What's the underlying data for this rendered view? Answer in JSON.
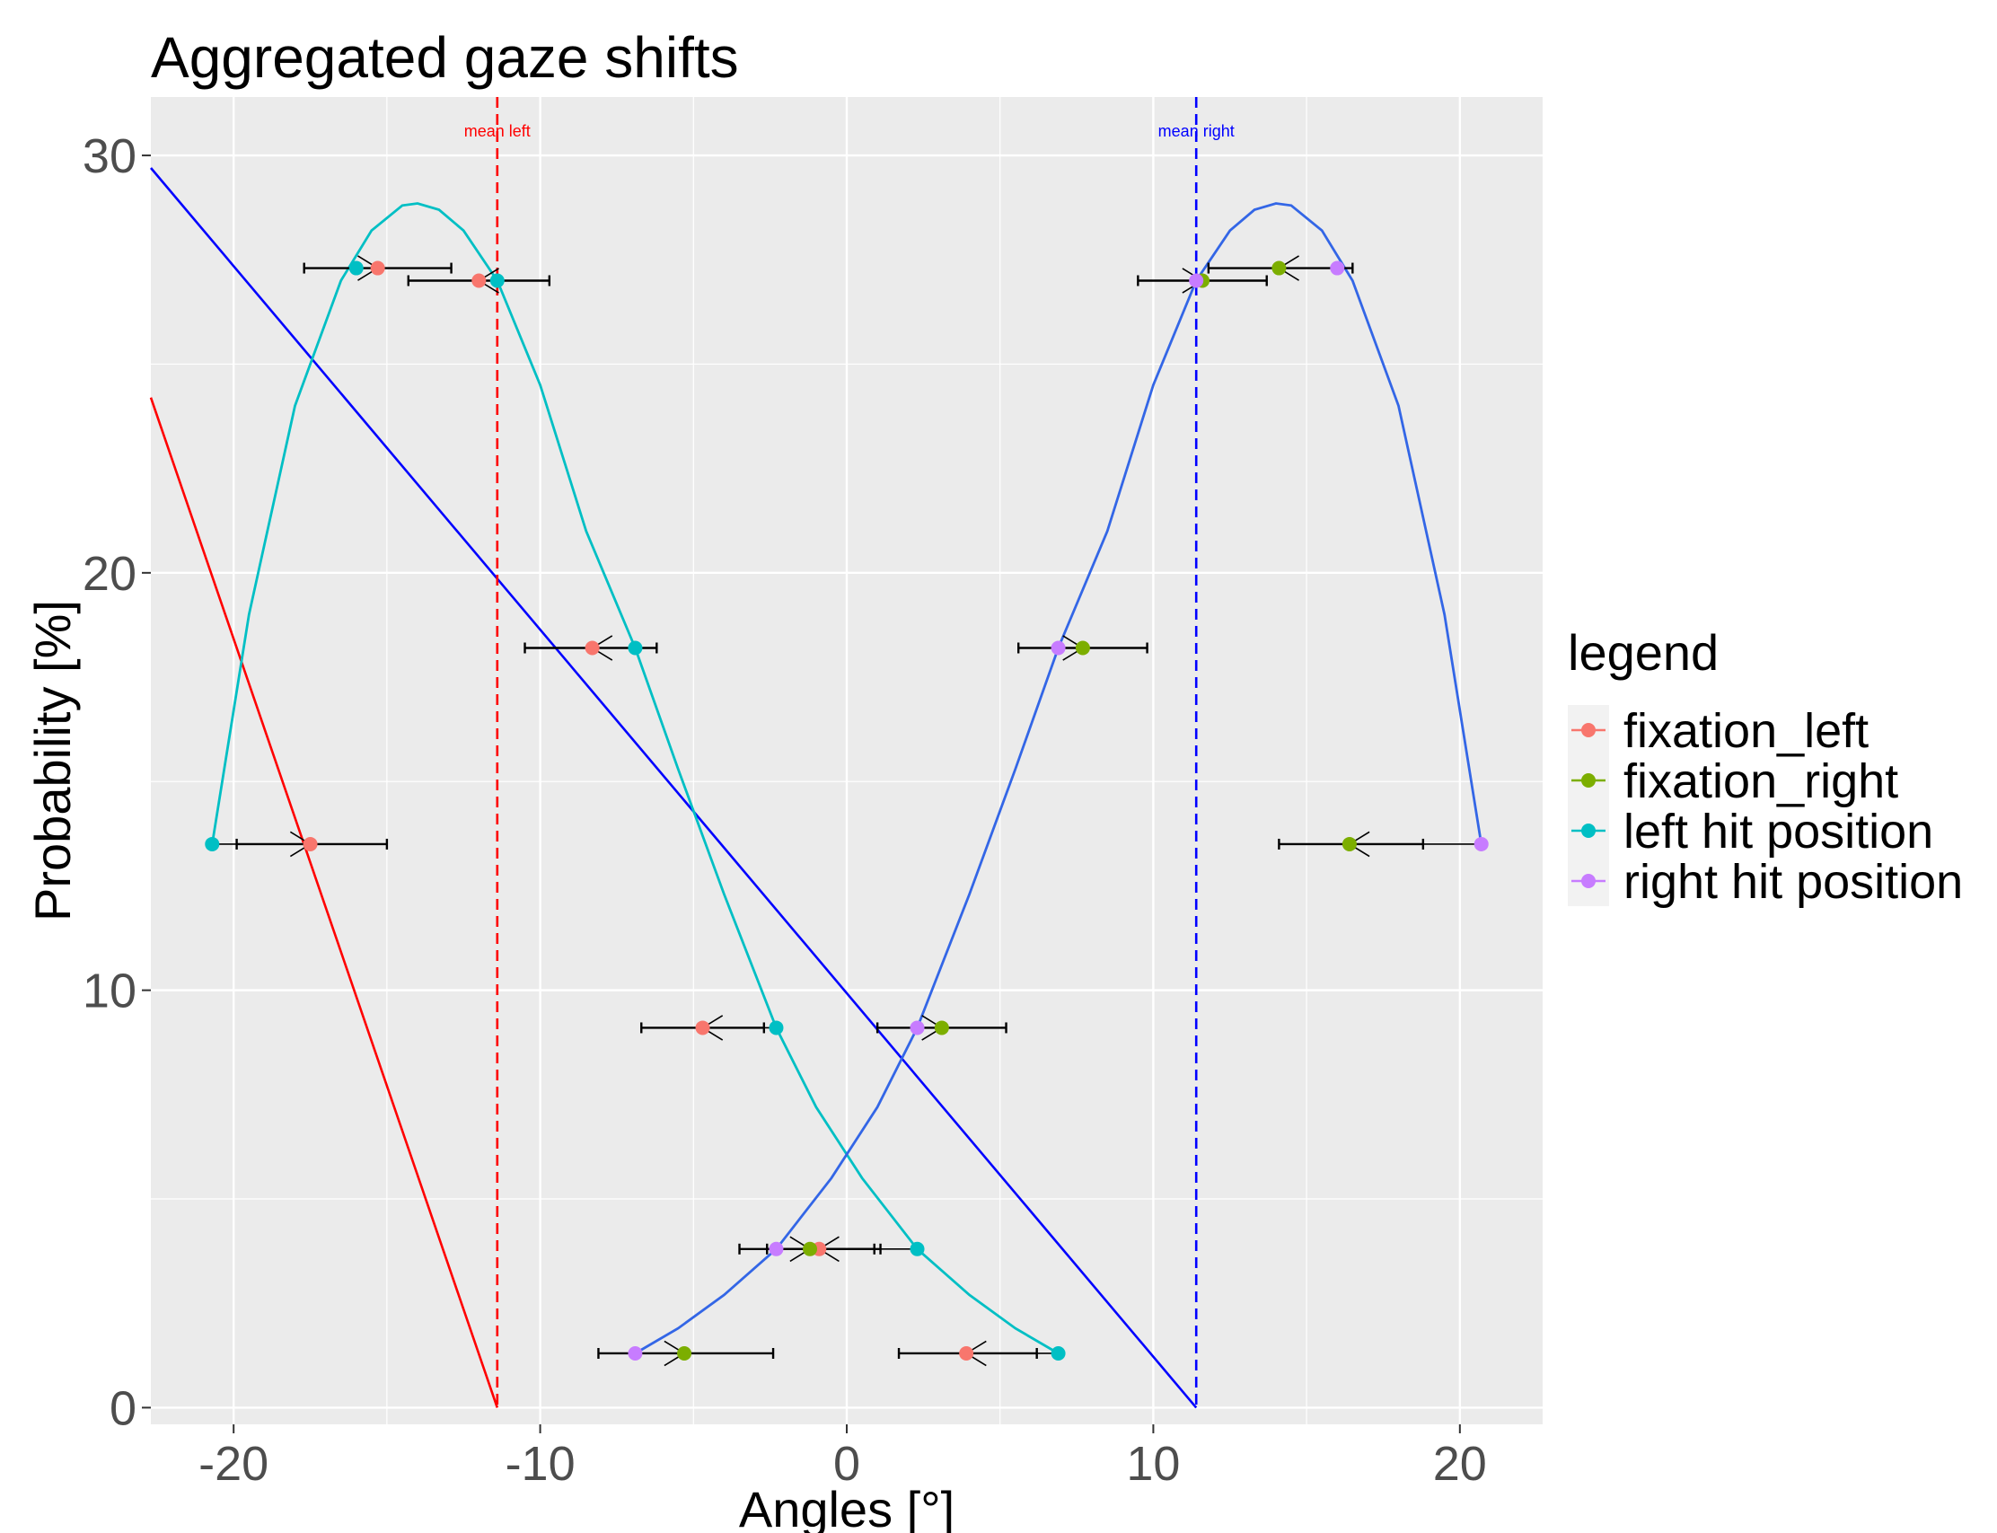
{
  "chart_data": {
    "type": "scatter",
    "title": "Aggregated gaze shifts",
    "xlabel": "Angles [°]",
    "ylabel": "Probability [%]",
    "xlim": [
      -22.7,
      22.7
    ],
    "ylim": [
      -0.4,
      31.4
    ],
    "x_ticks": [
      -20,
      -10,
      0,
      10,
      20
    ],
    "x_tick_labels": [
      "-20",
      "-10",
      "0",
      "10",
      "20"
    ],
    "y_ticks": [
      0,
      10,
      20,
      30
    ],
    "y_tick_labels": [
      "0",
      "10",
      "20",
      "30"
    ],
    "grid": true,
    "legend": {
      "title": "legend",
      "position": "right",
      "entries": [
        {
          "label": "fixation_left",
          "color": "#F8766D"
        },
        {
          "label": "fixation_right",
          "color": "#7CAE00"
        },
        {
          "label": "left hit position",
          "color": "#00BFC4"
        },
        {
          "label": "right hit position",
          "color": "#C77CFF"
        }
      ]
    },
    "series": [
      {
        "name": "fixation_left",
        "color": "#F8766D",
        "points": [
          [
            -17.5,
            13.5
          ],
          [
            -15.3,
            27.3
          ],
          [
            -12.0,
            27.0
          ],
          [
            -8.3,
            18.2
          ],
          [
            -4.7,
            9.1
          ],
          [
            -0.9,
            3.8
          ],
          [
            3.9,
            1.3
          ]
        ]
      },
      {
        "name": "fixation_right",
        "color": "#7CAE00",
        "points": [
          [
            -5.3,
            1.3
          ],
          [
            -1.2,
            3.8
          ],
          [
            3.1,
            9.1
          ],
          [
            7.7,
            18.2
          ],
          [
            11.6,
            27.0
          ],
          [
            14.1,
            27.3
          ],
          [
            16.4,
            13.5
          ]
        ]
      },
      {
        "name": "left hit position",
        "color": "#00BFC4",
        "points": [
          [
            -20.7,
            13.5
          ],
          [
            -16.0,
            27.3
          ],
          [
            -11.4,
            27.0
          ],
          [
            -6.9,
            18.2
          ],
          [
            -2.3,
            9.1
          ],
          [
            2.3,
            3.8
          ],
          [
            6.9,
            1.3
          ]
        ]
      },
      {
        "name": "right hit position",
        "color": "#C77CFF",
        "points": [
          [
            -6.9,
            1.3
          ],
          [
            -2.3,
            3.8
          ],
          [
            2.3,
            9.1
          ],
          [
            6.9,
            18.2
          ],
          [
            11.4,
            27.0
          ],
          [
            16.0,
            27.3
          ],
          [
            20.7,
            13.5
          ]
        ]
      }
    ],
    "error_bars": [
      {
        "y": 13.5,
        "xmin": -19.9,
        "xmax": -15.0
      },
      {
        "y": 27.3,
        "xmin": -17.7,
        "xmax": -12.9
      },
      {
        "y": 27.0,
        "xmin": -14.3,
        "xmax": -9.7
      },
      {
        "y": 18.2,
        "xmin": -10.5,
        "xmax": -6.2
      },
      {
        "y": 9.1,
        "xmin": -6.7,
        "xmax": -2.7
      },
      {
        "y": 3.8,
        "xmin": -3.5,
        "xmax": 1.1
      },
      {
        "y": 1.3,
        "xmin": -8.1,
        "xmax": -2.4
      },
      {
        "y": 3.8,
        "xmin": -2.6,
        "xmax": 0.9
      },
      {
        "y": 9.1,
        "xmin": 1.0,
        "xmax": 5.2
      },
      {
        "y": 18.2,
        "xmin": 5.6,
        "xmax": 9.8
      },
      {
        "y": 27.0,
        "xmin": 9.5,
        "xmax": 13.7
      },
      {
        "y": 27.3,
        "xmin": 11.8,
        "xmax": 16.5
      },
      {
        "y": 13.5,
        "xmin": 14.1,
        "xmax": 18.8
      },
      {
        "y": 1.3,
        "xmin": 1.7,
        "xmax": 6.2
      }
    ],
    "arrows": [
      {
        "from": [
          -16.0,
          27.3
        ],
        "to": [
          -15.3,
          27.3
        ]
      },
      {
        "from": [
          -11.4,
          27.0
        ],
        "to": [
          -12.0,
          27.0
        ]
      },
      {
        "from": [
          -20.7,
          13.5
        ],
        "to": [
          -17.5,
          13.5
        ]
      },
      {
        "from": [
          -6.9,
          18.2
        ],
        "to": [
          -8.3,
          18.2
        ]
      },
      {
        "from": [
          -2.3,
          9.1
        ],
        "to": [
          -4.7,
          9.1
        ]
      },
      {
        "from": [
          2.3,
          3.8
        ],
        "to": [
          -0.9,
          3.8
        ]
      },
      {
        "from": [
          6.9,
          1.3
        ],
        "to": [
          3.9,
          1.3
        ]
      },
      {
        "from": [
          11.4,
          27.0
        ],
        "to": [
          11.6,
          27.0
        ]
      },
      {
        "from": [
          16.0,
          27.3
        ],
        "to": [
          14.1,
          27.3
        ]
      },
      {
        "from": [
          20.7,
          13.5
        ],
        "to": [
          16.4,
          13.5
        ]
      },
      {
        "from": [
          6.9,
          18.2
        ],
        "to": [
          7.7,
          18.2
        ]
      },
      {
        "from": [
          2.3,
          9.1
        ],
        "to": [
          3.1,
          9.1
        ]
      },
      {
        "from": [
          -2.3,
          3.8
        ],
        "to": [
          -1.2,
          3.8
        ]
      },
      {
        "from": [
          -6.9,
          1.3
        ],
        "to": [
          -5.3,
          1.3
        ]
      }
    ],
    "curves": [
      {
        "color": "#00BFC4",
        "points": [
          [
            -20.7,
            13.5
          ],
          [
            -19.5,
            19.0
          ],
          [
            -18.0,
            24.0
          ],
          [
            -16.5,
            27.0
          ],
          [
            -15.5,
            28.2
          ],
          [
            -14.5,
            28.8
          ],
          [
            -14.0,
            28.85
          ],
          [
            -13.3,
            28.7
          ],
          [
            -12.5,
            28.2
          ],
          [
            -11.4,
            27.0
          ],
          [
            -10.0,
            24.5
          ],
          [
            -8.5,
            21.0
          ],
          [
            -6.9,
            18.2
          ],
          [
            -5.5,
            15.3
          ],
          [
            -4.0,
            12.3
          ],
          [
            -2.3,
            9.1
          ],
          [
            -1.0,
            7.2
          ],
          [
            0.5,
            5.5
          ],
          [
            2.3,
            3.8
          ],
          [
            4.0,
            2.7
          ],
          [
            5.5,
            1.9
          ],
          [
            6.9,
            1.3
          ]
        ]
      },
      {
        "color": "#3366E6",
        "points": [
          [
            -6.9,
            1.3
          ],
          [
            -5.5,
            1.9
          ],
          [
            -4.0,
            2.7
          ],
          [
            -2.3,
            3.8
          ],
          [
            -0.5,
            5.5
          ],
          [
            1.0,
            7.2
          ],
          [
            2.3,
            9.1
          ],
          [
            4.0,
            12.3
          ],
          [
            5.5,
            15.3
          ],
          [
            6.9,
            18.2
          ],
          [
            8.5,
            21.0
          ],
          [
            10.0,
            24.5
          ],
          [
            11.4,
            27.0
          ],
          [
            12.5,
            28.2
          ],
          [
            13.3,
            28.7
          ],
          [
            14.0,
            28.85
          ],
          [
            14.5,
            28.8
          ],
          [
            15.5,
            28.2
          ],
          [
            16.5,
            27.0
          ],
          [
            18.0,
            24.0
          ],
          [
            19.5,
            19.0
          ],
          [
            20.7,
            13.5
          ]
        ]
      }
    ],
    "ref_lines": [
      {
        "color": "#FF0000",
        "from": [
          -22.7,
          24.2
        ],
        "to": [
          -11.4,
          0
        ]
      },
      {
        "color": "#0000FF",
        "from": [
          -22.7,
          29.7
        ],
        "to": [
          11.4,
          0
        ]
      }
    ],
    "vlines": [
      {
        "x": -11.4,
        "color": "#FF0000",
        "label": "mean left"
      },
      {
        "x": 11.4,
        "color": "#0000FF",
        "label": "mean right"
      }
    ]
  }
}
